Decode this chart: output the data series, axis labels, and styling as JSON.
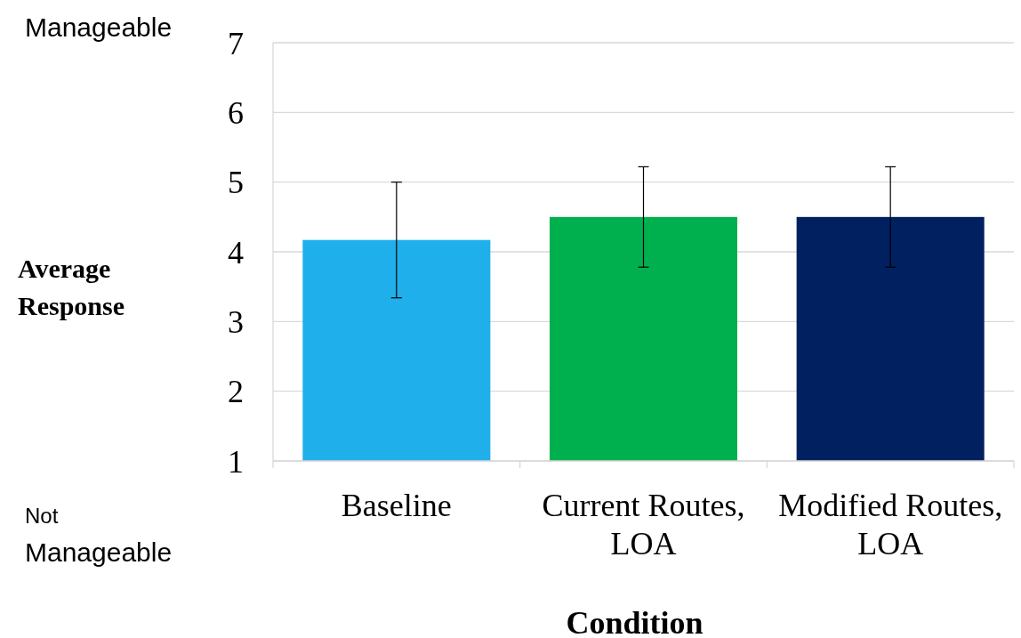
{
  "chart_data": {
    "type": "bar",
    "xlabel": "Condition",
    "ylabel": "Average Response",
    "categories": [
      "Baseline",
      "Current Routes, LOA",
      "Modified Routes, LOA"
    ],
    "values": [
      4.17,
      4.5,
      4.5
    ],
    "colors": [
      "#1fb0ec",
      "#00b04f",
      "#002060"
    ],
    "errors": [
      0.83,
      0.72,
      0.72
    ],
    "ylim": [
      1,
      7
    ],
    "yticks": [
      1,
      2,
      3,
      4,
      5,
      6,
      7
    ],
    "grid": "y",
    "annotations": [
      "Manageable",
      "Not Manageable"
    ]
  }
}
